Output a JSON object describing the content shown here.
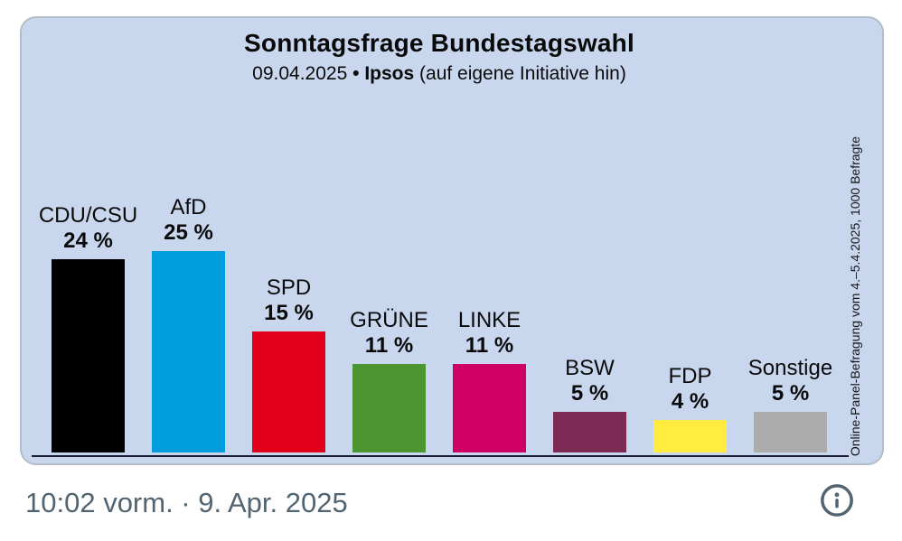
{
  "card": {
    "title": "Sonntagsfrage Bundestagswahl",
    "subtitle": {
      "date": "09.04.2025",
      "separator": "•",
      "source": "Ipsos",
      "note": "(auf eigene Initiative hin)"
    },
    "side_note": "Online-Panel-Befragung vom 4.–5.4.2025, 1000 Befragte"
  },
  "chart_data": {
    "type": "bar",
    "title": "Sonntagsfrage Bundestagswahl",
    "subtitle": "09.04.2025 • Ipsos (auf eigene Initiative hin)",
    "categories": [
      "CDU/CSU",
      "AfD",
      "SPD",
      "GRÜNE",
      "LINKE",
      "BSW",
      "FDP",
      "Sonstige"
    ],
    "values": [
      24,
      25,
      15,
      11,
      11,
      5,
      4,
      5
    ],
    "value_labels": [
      "24 %",
      "25 %",
      "15 %",
      "11 %",
      "11 %",
      "5 %",
      "4 %",
      "5 %"
    ],
    "colors": [
      "#000000",
      "#009DDE",
      "#E2001A",
      "#4B9630",
      "#CE0063",
      "#7C2B55",
      "#FFEC3E",
      "#ACACAC"
    ],
    "xlabel": "",
    "ylabel": "",
    "ylim": [
      0,
      28
    ],
    "grid": false,
    "legend": "none",
    "background_color": "#C9D7EE",
    "baseline_color": "#151B33",
    "annotation": "Online-Panel-Befragung vom 4.–5.4.2025, 1000 Befragte"
  },
  "footer": {
    "timestamp": "10:02 vorm. · 9. Apr. 2025",
    "timestamp_color": "#536471",
    "info_icon": "info-circle-icon"
  }
}
